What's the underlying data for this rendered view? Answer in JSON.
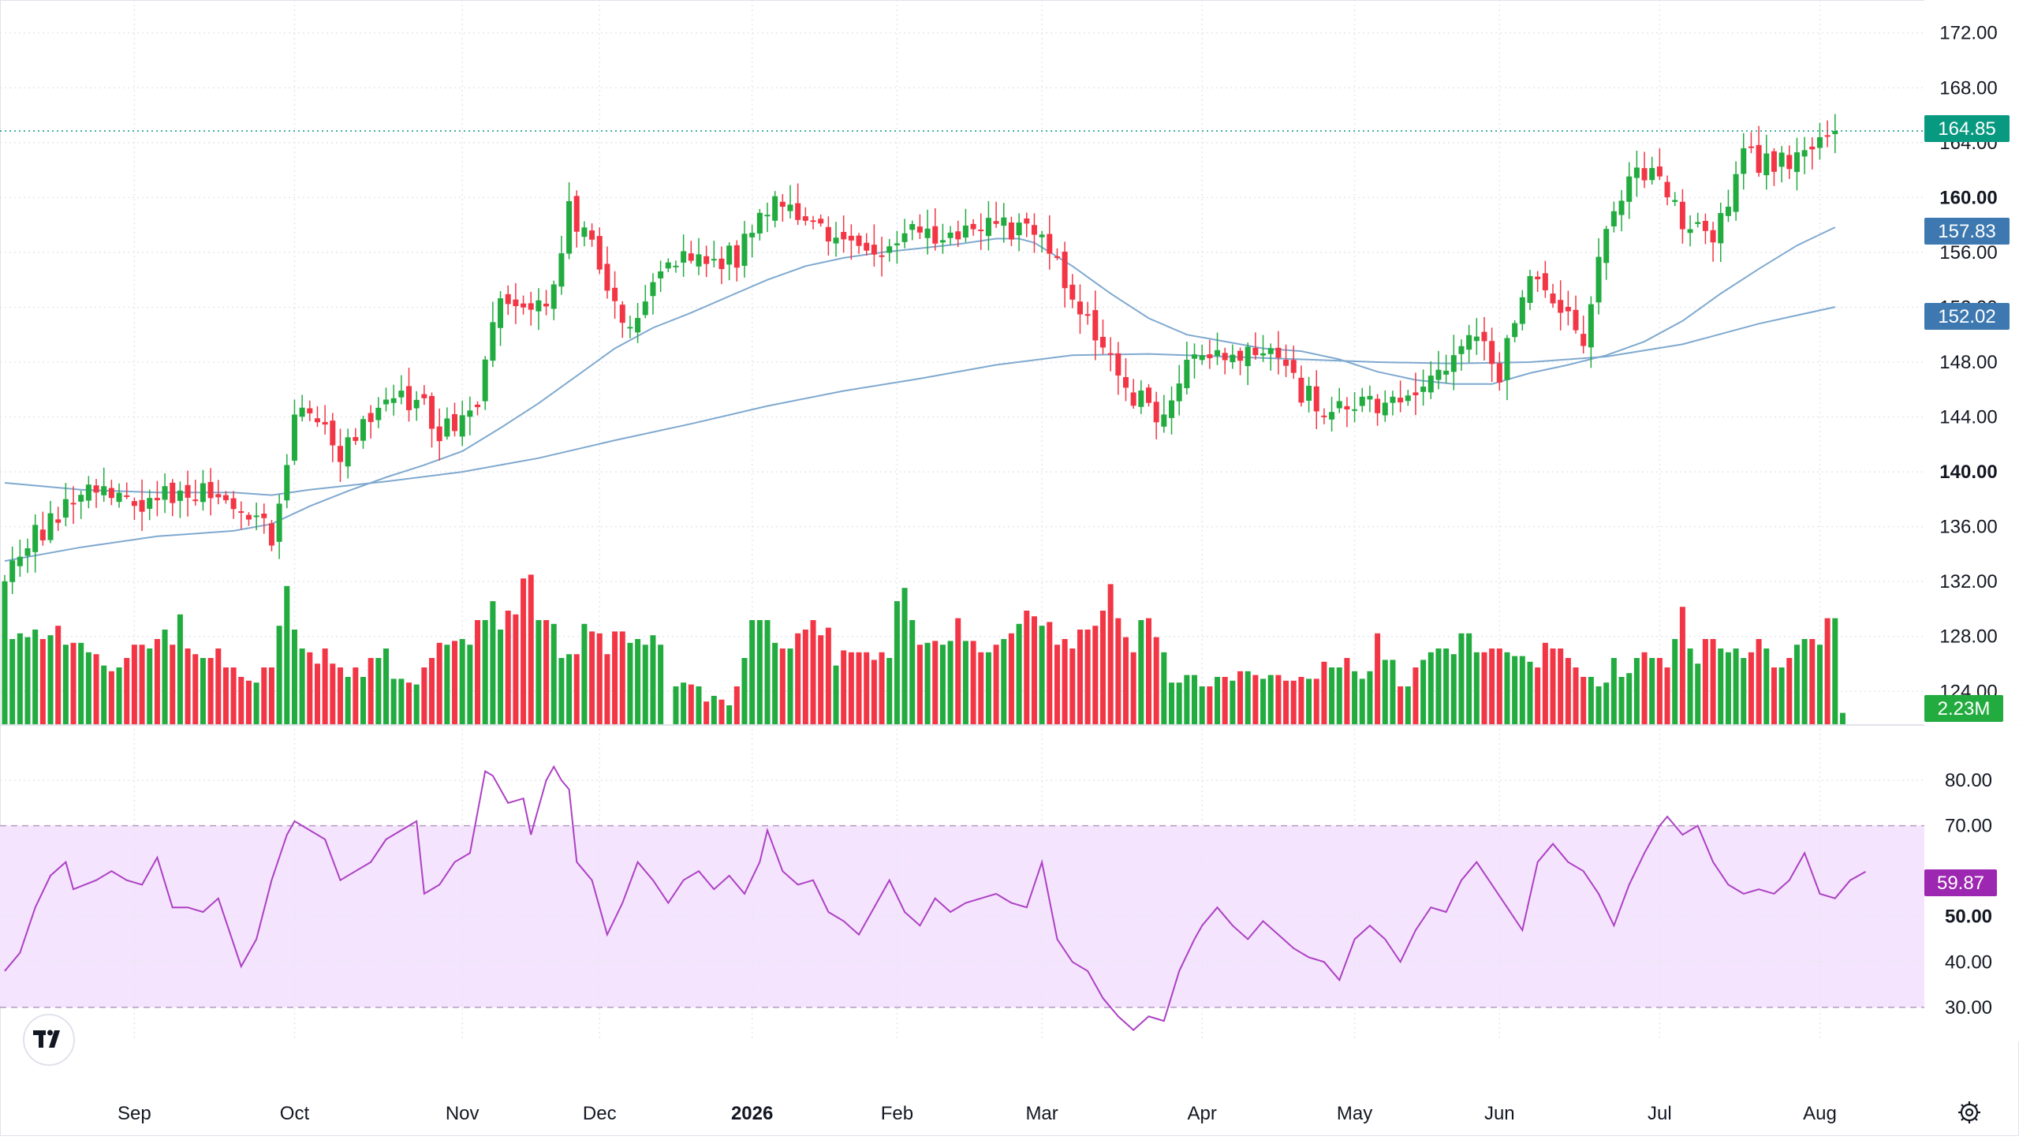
{
  "chart_data": {
    "type": "candlestick",
    "price_axis": {
      "ylim": [
        121.6,
        174.4
      ],
      "ticks": [
        {
          "value": 172,
          "label": "172.00",
          "bold": false
        },
        {
          "value": 168,
          "label": "168.00",
          "bold": false
        },
        {
          "value": 164,
          "label": "164.00",
          "bold": false
        },
        {
          "value": 160,
          "label": "160.00",
          "bold": true
        },
        {
          "value": 156,
          "label": "156.00",
          "bold": false
        },
        {
          "value": 152,
          "label": "152.00",
          "bold": false
        },
        {
          "value": 148,
          "label": "148.00",
          "bold": false
        },
        {
          "value": 144,
          "label": "144.00",
          "bold": false
        },
        {
          "value": 140,
          "label": "140.00",
          "bold": true
        },
        {
          "value": 136,
          "label": "136.00",
          "bold": false
        },
        {
          "value": 132,
          "label": "132.00",
          "bold": false
        },
        {
          "value": 128,
          "label": "128.00",
          "bold": false
        },
        {
          "value": 124,
          "label": "124.00",
          "bold": false
        }
      ]
    },
    "rsi_axis": {
      "ylim": [
        22.5,
        92
      ],
      "ticks": [
        {
          "value": 80,
          "label": "80.00",
          "bold": false
        },
        {
          "value": 70,
          "label": "70.00",
          "bold": false
        },
        {
          "value": 50,
          "label": "50.00",
          "bold": true
        },
        {
          "value": 40,
          "label": "40.00",
          "bold": false
        },
        {
          "value": 30,
          "label": "30.00",
          "bold": false
        }
      ],
      "band": [
        30,
        70
      ]
    },
    "x_labels": [
      {
        "label": "Sep",
        "index": 17,
        "bold": false
      },
      {
        "label": "Oct",
        "index": 38,
        "bold": false
      },
      {
        "label": "Nov",
        "index": 60,
        "bold": false
      },
      {
        "label": "Dec",
        "index": 78,
        "bold": false
      },
      {
        "label": "2026",
        "index": 98,
        "bold": true
      },
      {
        "label": "Feb",
        "index": 117,
        "bold": false
      },
      {
        "label": "Mar",
        "index": 136,
        "bold": false
      },
      {
        "label": "Apr",
        "index": 157,
        "bold": false
      },
      {
        "label": "May",
        "index": 177,
        "bold": false
      },
      {
        "label": "Jun",
        "index": 196,
        "bold": false
      },
      {
        "label": "Jul",
        "index": 217,
        "bold": false
      },
      {
        "label": "Aug",
        "index": 238,
        "bold": false
      }
    ],
    "last_price": {
      "label": "164.85",
      "value": 164.85,
      "color": "#089981"
    },
    "ma_fast": {
      "label": "157.83",
      "value": 157.83,
      "color": "#3d78b0"
    },
    "ma_slow": {
      "label": "152.02",
      "value": 152.02,
      "color": "#3d78b0"
    },
    "volume_badge": {
      "label": "2.23M",
      "color": "#22ab3f"
    },
    "rsi_badge": {
      "label": "59.87",
      "value": 59.87,
      "color": "#9c27b0"
    },
    "colors": {
      "up": "#22ab3f",
      "down": "#f23645",
      "ma": "#7fa9cf",
      "rsi": "#ad40c4",
      "rsi_band": "#f4e4fd"
    },
    "close_anchors": [
      [
        0,
        133.0
      ],
      [
        10,
        138.5
      ],
      [
        18,
        137.5
      ],
      [
        25,
        138.8
      ],
      [
        33,
        137.0
      ],
      [
        35,
        134.8
      ],
      [
        38,
        143.5
      ],
      [
        40,
        144.8
      ],
      [
        44,
        141.5
      ],
      [
        50,
        146.0
      ],
      [
        54,
        145.2
      ],
      [
        57,
        143.0
      ],
      [
        62,
        144.5
      ],
      [
        65,
        153.0
      ],
      [
        71,
        152.5
      ],
      [
        74,
        159.0
      ],
      [
        78,
        155.0
      ],
      [
        82,
        150.5
      ],
      [
        86,
        155.5
      ],
      [
        90,
        155.5
      ],
      [
        96,
        155.5
      ],
      [
        100,
        159.5
      ],
      [
        106,
        157.5
      ],
      [
        111,
        157.0
      ],
      [
        114,
        155.0
      ],
      [
        120,
        157.5
      ],
      [
        126,
        157.5
      ],
      [
        133,
        158.0
      ],
      [
        136,
        158.0
      ],
      [
        140,
        152.0
      ],
      [
        143,
        150.5
      ],
      [
        147,
        146.0
      ],
      [
        151,
        144.2
      ],
      [
        154,
        147.0
      ],
      [
        157,
        148.0
      ],
      [
        160,
        148.5
      ],
      [
        166,
        148.5
      ],
      [
        170,
        146.0
      ],
      [
        174,
        144.5
      ],
      [
        178,
        145.0
      ],
      [
        181,
        144.5
      ],
      [
        184,
        146.0
      ],
      [
        189,
        148.0
      ],
      [
        193,
        150.0
      ],
      [
        196,
        147.5
      ],
      [
        199,
        153.5
      ],
      [
        203,
        153.0
      ],
      [
        207,
        150.0
      ],
      [
        210,
        157.5
      ],
      [
        213,
        162.0
      ],
      [
        216,
        162.0
      ],
      [
        220,
        158.0
      ],
      [
        224,
        157.5
      ],
      [
        228,
        163.0
      ],
      [
        233,
        162.5
      ],
      [
        236,
        163.5
      ],
      [
        238,
        164.5
      ],
      [
        240,
        164.85
      ]
    ],
    "rsi_points": [
      [
        0,
        38
      ],
      [
        2,
        42
      ],
      [
        4,
        52
      ],
      [
        6,
        59
      ],
      [
        8,
        62
      ],
      [
        9,
        56
      ],
      [
        12,
        58
      ],
      [
        14,
        60
      ],
      [
        16,
        58
      ],
      [
        18,
        57
      ],
      [
        20,
        63
      ],
      [
        22,
        52
      ],
      [
        24,
        52
      ],
      [
        26,
        51
      ],
      [
        28,
        54
      ],
      [
        31,
        39
      ],
      [
        33,
        45
      ],
      [
        35,
        58
      ],
      [
        37,
        68
      ],
      [
        38,
        71
      ],
      [
        40,
        69
      ],
      [
        42,
        67
      ],
      [
        44,
        58
      ],
      [
        46,
        60
      ],
      [
        48,
        62
      ],
      [
        50,
        67
      ],
      [
        52,
        69
      ],
      [
        54,
        71
      ],
      [
        55,
        55
      ],
      [
        57,
        57
      ],
      [
        59,
        62
      ],
      [
        61,
        64
      ],
      [
        63,
        82
      ],
      [
        64,
        81
      ],
      [
        66,
        75
      ],
      [
        68,
        76
      ],
      [
        69,
        68
      ],
      [
        71,
        80
      ],
      [
        72,
        83
      ],
      [
        73,
        80
      ],
      [
        74,
        78
      ],
      [
        75,
        62
      ],
      [
        77,
        58
      ],
      [
        79,
        46
      ],
      [
        81,
        53
      ],
      [
        83,
        62
      ],
      [
        85,
        58
      ],
      [
        87,
        53
      ],
      [
        89,
        58
      ],
      [
        91,
        60
      ],
      [
        93,
        56
      ],
      [
        95,
        59
      ],
      [
        97,
        55
      ],
      [
        99,
        62
      ],
      [
        100,
        69
      ],
      [
        102,
        60
      ],
      [
        104,
        57
      ],
      [
        106,
        58
      ],
      [
        108,
        51
      ],
      [
        110,
        49
      ],
      [
        112,
        46
      ],
      [
        114,
        52
      ],
      [
        116,
        58
      ],
      [
        118,
        51
      ],
      [
        120,
        48
      ],
      [
        122,
        54
      ],
      [
        124,
        51
      ],
      [
        126,
        53
      ],
      [
        128,
        54
      ],
      [
        130,
        55
      ],
      [
        132,
        53
      ],
      [
        134,
        52
      ],
      [
        136,
        62
      ],
      [
        138,
        45
      ],
      [
        140,
        40
      ],
      [
        142,
        38
      ],
      [
        144,
        32
      ],
      [
        146,
        28
      ],
      [
        148,
        25
      ],
      [
        150,
        28
      ],
      [
        152,
        27
      ],
      [
        154,
        38
      ],
      [
        156,
        45
      ],
      [
        157,
        48
      ],
      [
        159,
        52
      ],
      [
        161,
        48
      ],
      [
        163,
        45
      ],
      [
        165,
        49
      ],
      [
        167,
        46
      ],
      [
        169,
        43
      ],
      [
        171,
        41
      ],
      [
        173,
        40
      ],
      [
        175,
        36
      ],
      [
        177,
        45
      ],
      [
        179,
        48
      ],
      [
        181,
        45
      ],
      [
        183,
        40
      ],
      [
        185,
        47
      ],
      [
        187,
        52
      ],
      [
        189,
        51
      ],
      [
        191,
        58
      ],
      [
        193,
        62
      ],
      [
        195,
        57
      ],
      [
        197,
        52
      ],
      [
        199,
        47
      ],
      [
        201,
        62
      ],
      [
        203,
        66
      ],
      [
        205,
        62
      ],
      [
        207,
        60
      ],
      [
        209,
        55
      ],
      [
        211,
        48
      ],
      [
        213,
        57
      ],
      [
        215,
        64
      ],
      [
        217,
        70
      ],
      [
        218,
        72
      ],
      [
        220,
        68
      ],
      [
        222,
        70
      ],
      [
        224,
        62
      ],
      [
        226,
        57
      ],
      [
        228,
        55
      ],
      [
        230,
        56
      ],
      [
        232,
        55
      ],
      [
        234,
        58
      ],
      [
        236,
        64
      ],
      [
        238,
        55
      ],
      [
        240,
        54
      ],
      [
        242,
        58
      ],
      [
        244,
        59.87
      ]
    ],
    "ma_fast_points": [
      [
        0,
        133.5
      ],
      [
        10,
        134.5
      ],
      [
        20,
        135.3
      ],
      [
        30,
        135.7
      ],
      [
        35,
        136.2
      ],
      [
        40,
        137.5
      ],
      [
        45,
        138.6
      ],
      [
        50,
        139.6
      ],
      [
        55,
        140.5
      ],
      [
        60,
        141.5
      ],
      [
        65,
        143.2
      ],
      [
        70,
        145.0
      ],
      [
        75,
        147.0
      ],
      [
        80,
        149.0
      ],
      [
        85,
        150.5
      ],
      [
        90,
        151.6
      ],
      [
        95,
        152.8
      ],
      [
        100,
        154.0
      ],
      [
        105,
        155.0
      ],
      [
        110,
        155.6
      ],
      [
        115,
        156.0
      ],
      [
        120,
        156.3
      ],
      [
        125,
        156.6
      ],
      [
        130,
        157.0
      ],
      [
        133,
        157.0
      ],
      [
        135,
        156.7
      ],
      [
        140,
        155.0
      ],
      [
        145,
        153.0
      ],
      [
        150,
        151.2
      ],
      [
        155,
        150.0
      ],
      [
        160,
        149.5
      ],
      [
        165,
        149.0
      ],
      [
        170,
        148.8
      ],
      [
        175,
        148.2
      ],
      [
        180,
        147.3
      ],
      [
        185,
        146.7
      ],
      [
        190,
        146.4
      ],
      [
        195,
        146.4
      ],
      [
        200,
        147.2
      ],
      [
        205,
        147.8
      ],
      [
        210,
        148.5
      ],
      [
        215,
        149.5
      ],
      [
        220,
        151.0
      ],
      [
        225,
        153.0
      ],
      [
        230,
        154.8
      ],
      [
        235,
        156.5
      ],
      [
        240,
        157.83
      ]
    ],
    "ma_slow_points": [
      [
        0,
        139.2
      ],
      [
        10,
        138.7
      ],
      [
        20,
        138.5
      ],
      [
        30,
        138.5
      ],
      [
        35,
        138.3
      ],
      [
        40,
        138.7
      ],
      [
        50,
        139.3
      ],
      [
        60,
        140.0
      ],
      [
        70,
        141.0
      ],
      [
        80,
        142.3
      ],
      [
        90,
        143.5
      ],
      [
        100,
        144.8
      ],
      [
        110,
        145.9
      ],
      [
        120,
        146.8
      ],
      [
        130,
        147.8
      ],
      [
        140,
        148.5
      ],
      [
        150,
        148.6
      ],
      [
        160,
        148.4
      ],
      [
        170,
        148.2
      ],
      [
        180,
        148.0
      ],
      [
        190,
        147.9
      ],
      [
        200,
        148.0
      ],
      [
        210,
        148.4
      ],
      [
        220,
        149.3
      ],
      [
        230,
        150.8
      ],
      [
        240,
        152.02
      ]
    ],
    "volume_bars": [
      {
        "start": 0,
        "heights": [
          0.75,
          0.45,
          0.48,
          0.46,
          0.5,
          0.45,
          0.47,
          0.52,
          0.42,
          0.43,
          0.43,
          0.38,
          0.37,
          0.31,
          0.28,
          0.3,
          0.35,
          0.42,
          0.42,
          0.4,
          0.45,
          0.5,
          0.42,
          0.58,
          0.4,
          0.37,
          0.35,
          0.35,
          0.4,
          0.3,
          0.3,
          0.25,
          0.23,
          0.22,
          0.3,
          0.3,
          0.52,
          0.73,
          0.5,
          0.4,
          0.38,
          0.32,
          0.4,
          0.32,
          0.3,
          0.25,
          0.3,
          0.25,
          0.35,
          0.35,
          0.4,
          0.24,
          0.24,
          0.22,
          0.21,
          0.3,
          0.35,
          0.43,
          0.42,
          0.44,
          0.45,
          0.42,
          0.55,
          0.55,
          0.65,
          0.5,
          0.6,
          0.58,
          0.77,
          0.79,
          0.55,
          0.55,
          0.53,
          0.35,
          0.37,
          0.37,
          0.53,
          0.49,
          0.48,
          0.37,
          0.49,
          0.49,
          0.43,
          0.45,
          0.42,
          0.47,
          0.42
        ]
      },
      {
        "start": 88,
        "heights": [
          0.2,
          0.22,
          0.21,
          0.2,
          0.12,
          0.15,
          0.13,
          0.1,
          0.2,
          0.35,
          0.55,
          0.55,
          0.55,
          0.43,
          0.4,
          0.4,
          0.48,
          0.5,
          0.55,
          0.47,
          0.51,
          0.31,
          0.39,
          0.38,
          0.38,
          0.38,
          0.34,
          0.38,
          0.35,
          0.65,
          0.72,
          0.55,
          0.42,
          0.43,
          0.44,
          0.42,
          0.44,
          0.56,
          0.44,
          0.44,
          0.38,
          0.38,
          0.42,
          0.45,
          0.48,
          0.53,
          0.6,
          0.57,
          0.52,
          0.54,
          0.42,
          0.45,
          0.4,
          0.5,
          0.5,
          0.52,
          0.6,
          0.74,
          0.56,
          0.46,
          0.38,
          0.55,
          0.56,
          0.46,
          0.38
        ]
      },
      {
        "start": 153,
        "heights": [
          0.22,
          0.22,
          0.26,
          0.26,
          0.2,
          0.2,
          0.25,
          0.25,
          0.23,
          0.28,
          0.28,
          0.26,
          0.24,
          0.26,
          0.26,
          0.23,
          0.23,
          0.25,
          0.24,
          0.24,
          0.33,
          0.3,
          0.3,
          0.35,
          0.28,
          0.24,
          0.28,
          0.48,
          0.34,
          0.34,
          0.2,
          0.2,
          0.3,
          0.34,
          0.38,
          0.4,
          0.4,
          0.37,
          0.48,
          0.48,
          0.38,
          0.38,
          0.4,
          0.4
        ]
      },
      {
        "start": 197,
        "heights": [
          0.38,
          0.36,
          0.36,
          0.33,
          0.3,
          0.43,
          0.4,
          0.4,
          0.35,
          0.3,
          0.25,
          0.25,
          0.2,
          0.22,
          0.35,
          0.25,
          0.27,
          0.35,
          0.38,
          0.35,
          0.35,
          0.3,
          0.45,
          0.62,
          0.4,
          0.32,
          0.45,
          0.45,
          0.4,
          0.38,
          0.4,
          0.35,
          0.38,
          0.45,
          0.4,
          0.3,
          0.3,
          0.35,
          0.42,
          0.45,
          0.45,
          0.42,
          0.56,
          0.56,
          0.06
        ]
      }
    ]
  }
}
